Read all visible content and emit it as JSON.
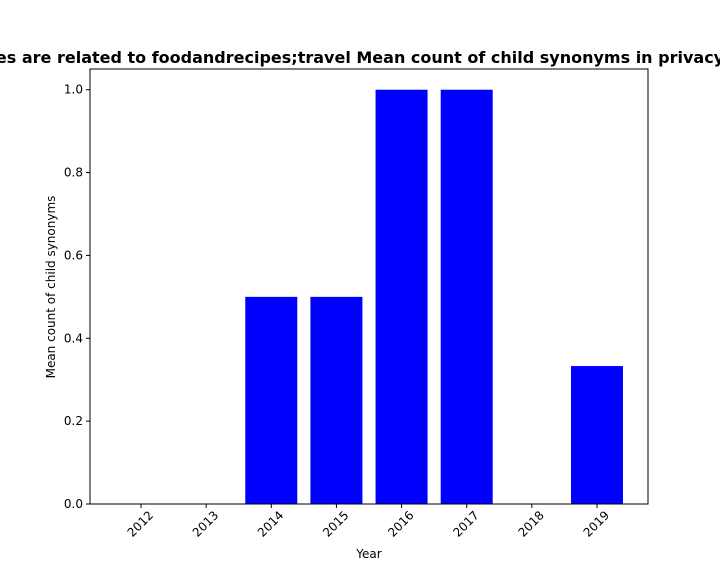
{
  "chart_data": {
    "type": "bar",
    "title": "es are related to foodandrecipes;travel Mean count of child synonyms in privacy",
    "xlabel": "Year",
    "ylabel": "Mean count of child synonyms",
    "categories": [
      "2012",
      "2013",
      "2014",
      "2015",
      "2016",
      "2017",
      "2018",
      "2019"
    ],
    "values": [
      0,
      0,
      0.5,
      0.5,
      1.0,
      1.0,
      0,
      0.333
    ],
    "ylim": [
      0,
      1.05
    ],
    "yticks": [
      "0.0",
      "0.2",
      "0.4",
      "0.6",
      "0.8",
      "1.0"
    ],
    "bar_color": "#0000ff",
    "grid": false
  }
}
